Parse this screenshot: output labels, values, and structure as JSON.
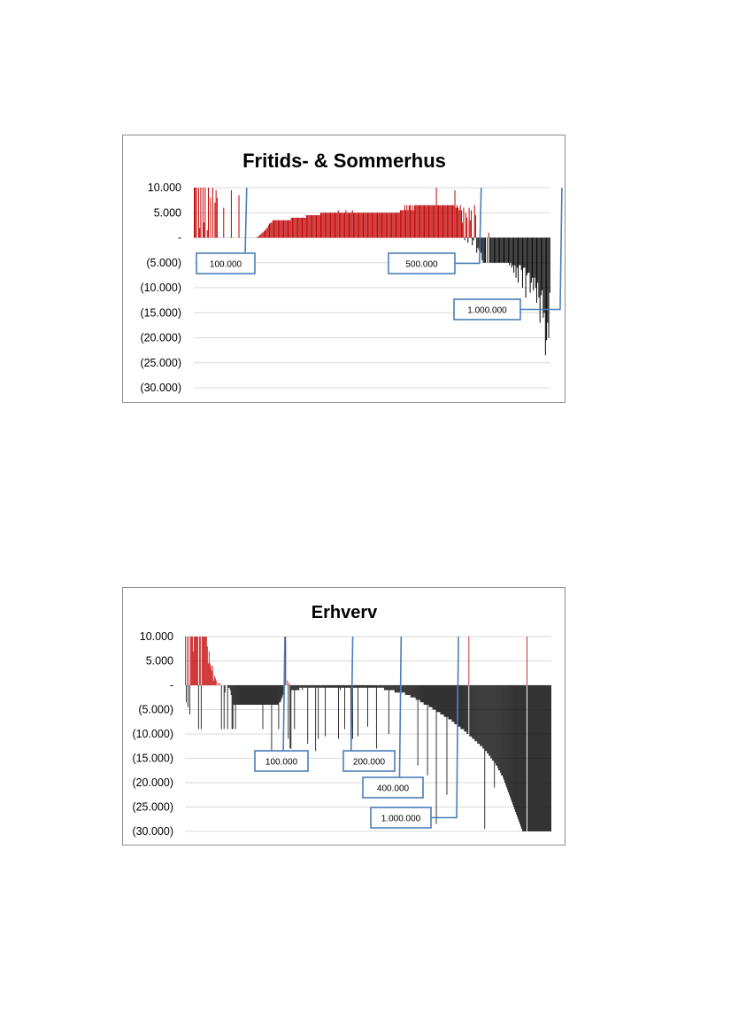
{
  "chart_data": [
    {
      "type": "bar",
      "title": "Fritids- & Sommerhus",
      "ylim": [
        -30000,
        10000
      ],
      "yticks": [
        {
          "value": 10000,
          "label": "10.000"
        },
        {
          "value": 5000,
          "label": "5.000"
        },
        {
          "value": 0,
          "label": "-"
        },
        {
          "value": -5000,
          "label": "(5.000)"
        },
        {
          "value": -10000,
          "label": "(10.000)"
        },
        {
          "value": -15000,
          "label": "(15.000)"
        },
        {
          "value": -20000,
          "label": "(20.000)"
        },
        {
          "value": -25000,
          "label": "(25.000)"
        },
        {
          "value": -30000,
          "label": "(30.000)"
        }
      ],
      "grid": true,
      "colors": {
        "positive": "#c00000",
        "negative": "#000000",
        "callout": "#4a7ebb",
        "grid": "#d9d9d9"
      },
      "values": [
        10000,
        10000,
        10000,
        0,
        10000,
        2000,
        10000,
        0,
        10000,
        3000,
        10000,
        0,
        1500,
        10000,
        0,
        8000,
        0,
        10000,
        0,
        7000,
        9500,
        8000,
        0,
        0,
        0,
        0,
        0,
        6000,
        0,
        0,
        0,
        0,
        0,
        0,
        9500,
        0,
        0,
        0,
        0,
        0,
        0,
        8500,
        0,
        0,
        0,
        0,
        0,
        0,
        0,
        0,
        0,
        0,
        0,
        0,
        0,
        0,
        0,
        0,
        200,
        300,
        500,
        700,
        900,
        1100,
        1300,
        1500,
        1800,
        2000,
        2500,
        2800,
        3000,
        3000,
        3500,
        3500,
        3500,
        3500,
        3500,
        3500,
        3500,
        3500,
        3500,
        3500,
        3500,
        3500,
        3500,
        3500,
        3500,
        3500,
        3500,
        4000,
        4000,
        4000,
        4000,
        4000,
        4000,
        4000,
        4000,
        4000,
        4000,
        4000,
        4000,
        4000,
        4000,
        4500,
        4500,
        4500,
        4500,
        4500,
        4500,
        4500,
        4500,
        4500,
        4500,
        4500,
        4500,
        4500,
        5000,
        5000,
        5000,
        5000,
        5000,
        5000,
        5000,
        5000,
        5000,
        5000,
        5000,
        5000,
        5000,
        5000,
        5000,
        5000,
        5500,
        5000,
        5000,
        5000,
        5000,
        5000,
        5000,
        5500,
        5000,
        5000,
        5000,
        5000,
        5000,
        5500,
        5000,
        5000,
        5000,
        5000,
        5000,
        5000,
        5000,
        5000,
        5000,
        5000,
        5000,
        5000,
        5000,
        5000,
        5000,
        5000,
        5000,
        5000,
        5000,
        5000,
        5000,
        5000,
        5000,
        5000,
        5000,
        5000,
        5000,
        5000,
        5000,
        5000,
        5000,
        5000,
        5000,
        5000,
        5000,
        5000,
        5000,
        5000,
        5000,
        5000,
        5000,
        5000,
        5000,
        5500,
        5500,
        5500,
        5500,
        6500,
        5500,
        6500,
        5500,
        6500,
        6500,
        5500,
        6500,
        5500,
        6500,
        6500,
        6500,
        6500,
        6500,
        6500,
        6500,
        6500,
        6500,
        6500,
        6500,
        6500,
        6500,
        6500,
        6500,
        6500,
        6500,
        6500,
        6500,
        6500,
        10000,
        6500,
        6500,
        6500,
        6500,
        6500,
        6500,
        6500,
        6500,
        6500,
        6500,
        6500,
        6500,
        6500,
        6500,
        6500,
        6500,
        9500,
        6000,
        6500,
        6000,
        5500,
        6500,
        5500,
        3000,
        6000,
        -500,
        5000,
        4000,
        -1000,
        6000,
        3500,
        5500,
        -1500,
        -500,
        6500,
        4500,
        -3000,
        -2000,
        -2500,
        -1500,
        -3000,
        -4500,
        -5000,
        -5000,
        -5000,
        0,
        -5000,
        1000,
        -5000,
        -5000,
        -5000,
        -5000,
        -5000,
        -5000,
        -5000,
        -5000,
        -5000,
        -5000,
        -5000,
        -5000,
        -5000,
        -5000,
        -5000,
        -5000,
        -5000,
        -5000,
        -5500,
        -5000,
        -6000,
        -5500,
        -7000,
        -5500,
        -8000,
        -6000,
        -9000,
        -5500,
        -5500,
        -6500,
        -10000,
        -6000,
        -6000,
        -12000,
        -7500,
        -7000,
        -7000,
        -11000,
        -9000,
        -8000,
        -10500,
        -8000,
        -10000,
        -13000,
        -9000,
        -12000,
        -17000,
        -11500,
        -10500,
        -16000,
        -15000,
        -23500,
        -20500,
        -17000,
        -20000,
        -11000
      ],
      "callouts": [
        {
          "label": "100.000",
          "index": 48
        },
        {
          "label": "500.000",
          "index": 263
        },
        {
          "label": "1.000.000",
          "index": 337
        }
      ]
    },
    {
      "type": "bar",
      "title": "Erhverv",
      "ylim": [
        -30000,
        10000
      ],
      "yticks": [
        {
          "value": 10000,
          "label": "10.000"
        },
        {
          "value": 5000,
          "label": "5.000"
        },
        {
          "value": 0,
          "label": "-"
        },
        {
          "value": -5000,
          "label": "(5.000)"
        },
        {
          "value": -10000,
          "label": "(10.000)"
        },
        {
          "value": -15000,
          "label": "(15.000)"
        },
        {
          "value": -20000,
          "label": "(20.000)"
        },
        {
          "value": -25000,
          "label": "(25.000)"
        },
        {
          "value": -30000,
          "label": "(30.000)"
        }
      ],
      "grid": true,
      "colors": {
        "positive": "#c00000",
        "negative": "#000000",
        "callout": "#4a7ebb",
        "grid": "#d9d9d9"
      },
      "values": [
        10000,
        -3500,
        10000,
        -4500,
        10000,
        -6000,
        10000,
        10000,
        10000,
        7000,
        10000,
        10000,
        10000,
        10000,
        10000,
        -9000,
        10000,
        10000,
        -9000,
        10000,
        10000,
        10000,
        10000,
        10000,
        10000,
        8000,
        4500,
        7000,
        4500,
        4000,
        3000,
        4000,
        1000,
        2000,
        1500,
        1000,
        0,
        500,
        0,
        500,
        0,
        -9000,
        0,
        0,
        -9000,
        -1500,
        0,
        0,
        -9000,
        -500,
        -500,
        -1000,
        -2000,
        -9000,
        -9000,
        -4000,
        -4000,
        -9000,
        -4000,
        -4000,
        -4000,
        -4000,
        -4000,
        -4000,
        -4000,
        -4000,
        -4000,
        -4000,
        -4000,
        -4000,
        -4000,
        -4000,
        -4000,
        -4000,
        -4000,
        -4000,
        -4000,
        -4000,
        -4000,
        -4000,
        -4000,
        -4000,
        -4000,
        -4000,
        -4000,
        -4000,
        -4000,
        -4000,
        -9000,
        -4000,
        -4000,
        -4000,
        -4000,
        -4000,
        -4000,
        -4000,
        -4000,
        -4000,
        -13500,
        -4000,
        -4000,
        -4000,
        -4000,
        -4000,
        -4000,
        -4000,
        -9000,
        -3500,
        -3500,
        -3000,
        -2500,
        -2000,
        -1500,
        10000,
        10000,
        0,
        1000,
        -11000,
        500,
        -13000,
        -13000,
        -1000,
        -1000,
        -1000,
        -9000,
        -1000,
        -1000,
        -1000,
        -1000,
        -1000,
        -500,
        -500,
        -500,
        -1000,
        -500,
        -500,
        -500,
        -500,
        -500,
        -12000,
        -500,
        -500,
        -500,
        -500,
        -500,
        -500,
        -500,
        -500,
        -13500,
        -500,
        -500,
        -11000,
        -500,
        -500,
        -500,
        -500,
        -500,
        -500,
        -500,
        -10500,
        -500,
        -500,
        -500,
        -500,
        -500,
        -500,
        -500,
        -500,
        -500,
        -500,
        -500,
        -500,
        -500,
        -500,
        -11000,
        -500,
        -1000,
        -500,
        -500,
        -500,
        -500,
        -9000,
        -500,
        -500,
        -500,
        -500,
        -500,
        -500,
        -11500,
        -500,
        -11000,
        -500,
        -500,
        -500,
        -500,
        -500,
        -10500,
        -500,
        -500,
        -500,
        -500,
        -500,
        -500,
        -500,
        -500,
        -500,
        -500,
        -8500,
        -500,
        -500,
        -500,
        -500,
        -500,
        -500,
        -500,
        -500,
        -500,
        -13000,
        -500,
        -500,
        -500,
        -500,
        -500,
        -500,
        -500,
        -500,
        -1000,
        -1000,
        -1000,
        -1000,
        -1000,
        -10000,
        -1000,
        -1000,
        -1000,
        -1000,
        -1000,
        -1000,
        -1500,
        -1500,
        -1500,
        -1500,
        -1500,
        -1500,
        -1500,
        -1500,
        -1500,
        -1500,
        -1500,
        -1500,
        -2000,
        -2000,
        -2000,
        -2000,
        -2000,
        -2000,
        -2500,
        -2500,
        -2500,
        -2500,
        -2500,
        -2500,
        -3000,
        -3000,
        -16500,
        -3000,
        -3000,
        -3500,
        -3500,
        -3500,
        -3500,
        -4000,
        -4000,
        -4000,
        -4000,
        -18500,
        -4000,
        -4500,
        -4500,
        -4500,
        -4500,
        -5000,
        -5000,
        -5000,
        -5000,
        -28500,
        -5500,
        -5500,
        -5500,
        -5500,
        -6000,
        -6000,
        -6000,
        -6000,
        -6500,
        -6500,
        -6500,
        -22500,
        -6500,
        -7000,
        -7000,
        -7000,
        -7000,
        -7500,
        -7500,
        -7500,
        -8000,
        -8000,
        -8000,
        -8000,
        -8500,
        -8500,
        -8500,
        -9000,
        -9000,
        -9000,
        -9000,
        -9500,
        -9500,
        -9500,
        -10000,
        -10000,
        10000,
        -10500,
        -10500,
        -10500,
        -11000,
        -11000,
        -11000,
        -11500,
        -11500,
        -11500,
        -12000,
        -12000,
        -12000,
        -12500,
        -12500,
        -12500,
        -13000,
        -13000,
        -29500,
        -13500,
        -13500,
        -14000,
        -14000,
        -14500,
        -14500,
        -15000,
        -15000,
        -15500,
        -15500,
        -21000,
        -16000,
        -16500,
        -16500,
        -17000,
        -17500,
        -17500,
        -18000,
        -18500,
        -18500,
        -19000,
        -19500,
        -20000,
        -20500,
        -21000,
        -21500,
        -22000,
        -22500,
        -23000,
        -23500,
        -24000,
        -24500,
        -25000,
        -25500,
        -26000,
        -26500,
        -27000,
        -27500,
        -28000,
        -28500,
        -29000,
        -29500,
        -30000,
        -30000,
        -30000,
        -30000,
        -30000,
        10000,
        -30000,
        -30000,
        -30000,
        -30000,
        -30000,
        -30000,
        -30000,
        -30000,
        -30000,
        -30000,
        -30000,
        -30000,
        -30000,
        -30000,
        -30000,
        -30000,
        -30000,
        -30000,
        -30000,
        -30000,
        -30000,
        -30000,
        -30000,
        -30000,
        -30000,
        -30000,
        -30000
      ],
      "callouts": [
        {
          "label": "100.000",
          "index": 113
        },
        {
          "label": "200.000",
          "index": 190
        },
        {
          "label": "400.000",
          "index": 245
        },
        {
          "label": "1.000.000",
          "index": 310
        }
      ]
    }
  ]
}
